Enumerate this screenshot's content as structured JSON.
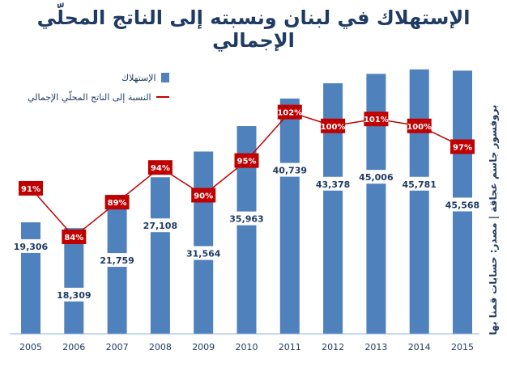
{
  "chart_data": {
    "type": "bar",
    "title": "الإستهلاك في لبنان ونسبته إلى الناتج المحلّي الإجمالي",
    "categories": [
      "2005",
      "2006",
      "2007",
      "2008",
      "2009",
      "2010",
      "2011",
      "2012",
      "2013",
      "2014",
      "2015"
    ],
    "series": [
      {
        "name": "الإستهلاك",
        "type": "bar",
        "values": [
          19306,
          18309,
          21759,
          27108,
          31564,
          35963,
          40739,
          43378,
          45006,
          45781,
          45568
        ],
        "labels": [
          "19,306",
          "18,309",
          "21,759",
          "27,108",
          "31,564",
          "35,963",
          "40,739",
          "43,378",
          "45,006",
          "45,781",
          "45,568"
        ]
      },
      {
        "name": "النسبة إلى الناتج المحلّي الإجمالي",
        "type": "line",
        "values": [
          91,
          84,
          89,
          94,
          90,
          95,
          102,
          100,
          101,
          100,
          97
        ],
        "labels": [
          "91%",
          "84%",
          "89%",
          "94%",
          "90%",
          "95%",
          "102%",
          "100%",
          "101%",
          "100%",
          "97%"
        ]
      }
    ],
    "bar_ylim": [
      0,
      48000
    ],
    "line_ylim": [
      70,
      110
    ],
    "grid": false,
    "legend_position": "top-left",
    "source_note": "بروفسور جاسم عجاقة | مصدر: حسابات قمنا بها",
    "colors": {
      "bar": "#4f81bd",
      "line": "#c00000",
      "label_box": "#c00000",
      "text": "#1f3b63"
    }
  }
}
